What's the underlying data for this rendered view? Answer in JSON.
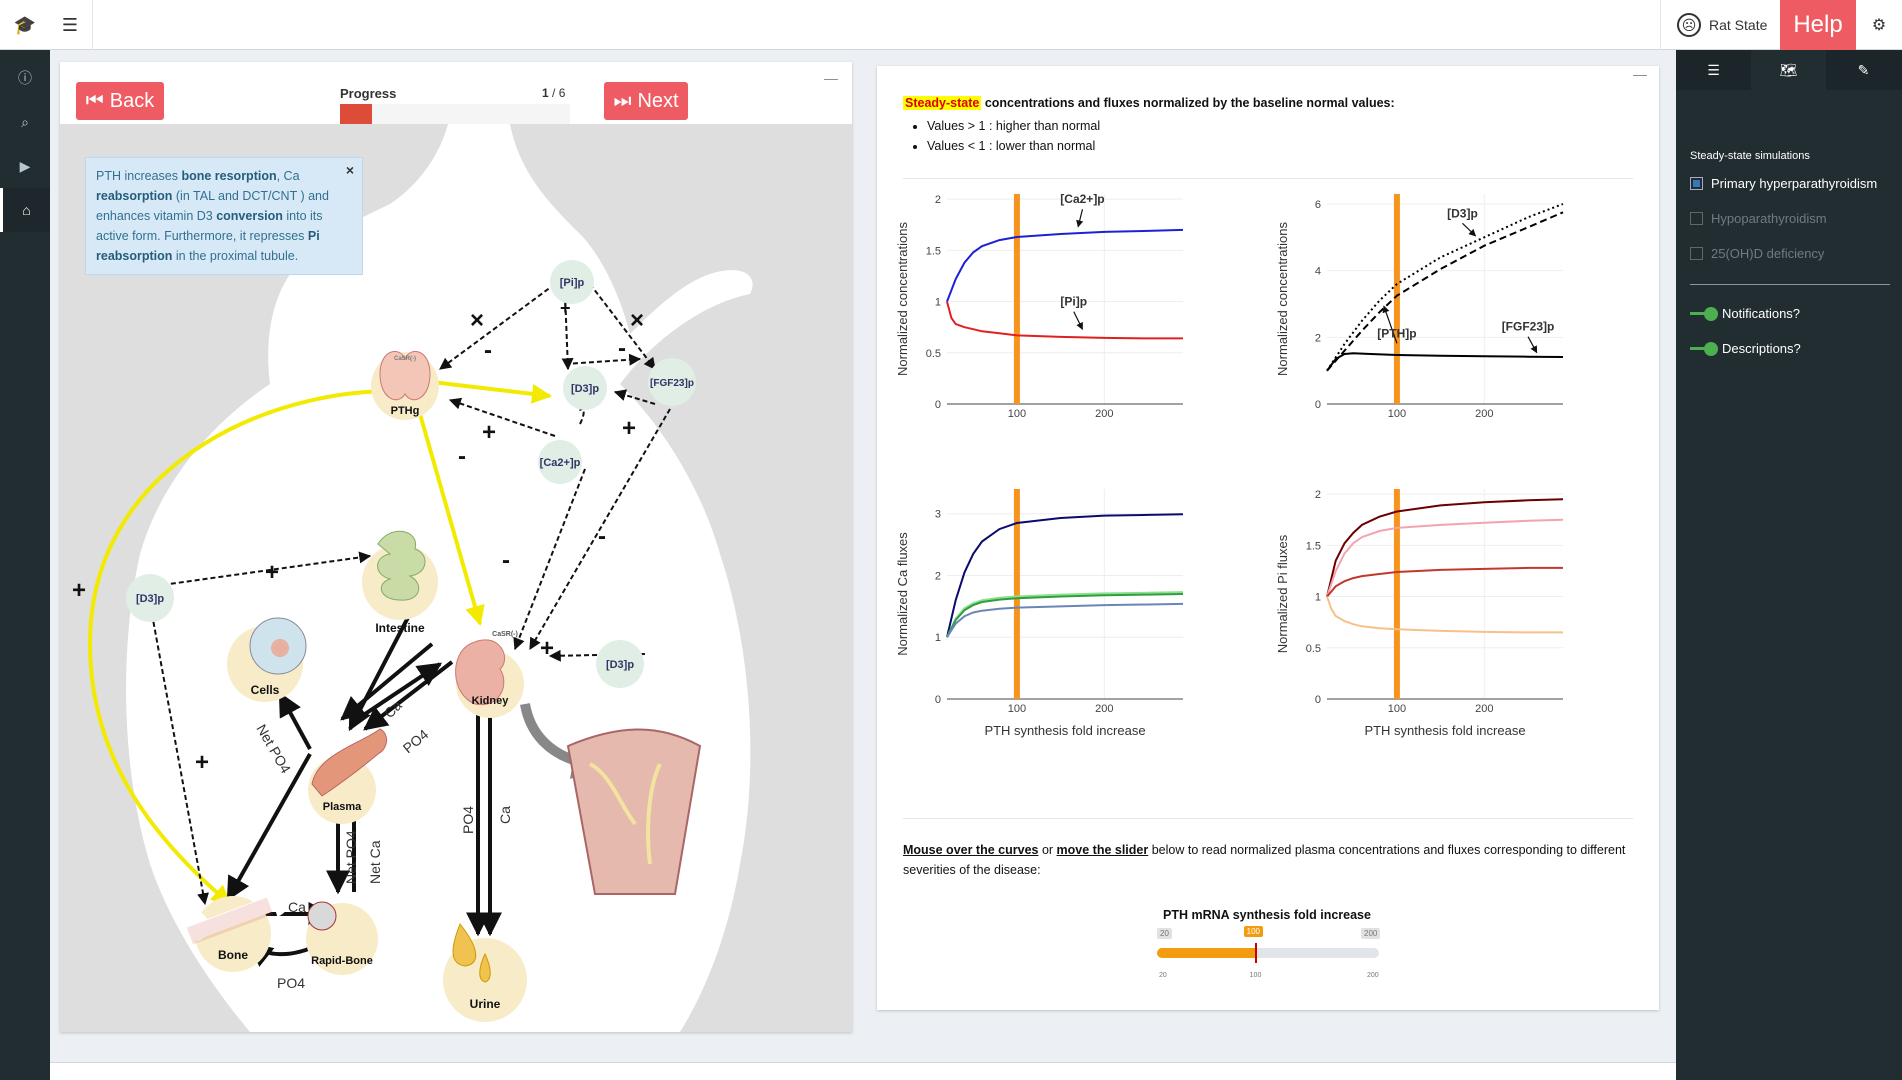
{
  "topbar": {
    "logo_icon": "graduation-cap-icon",
    "menu_icon": "hamburger-icon",
    "rat_state_label": "Rat State",
    "help_label": "Help",
    "settings_icon": "gears-icon"
  },
  "leftnav": {
    "items": [
      {
        "name": "info-icon",
        "glyph": "i"
      },
      {
        "name": "search-icon",
        "glyph": "⌕"
      },
      {
        "name": "video-icon",
        "glyph": "▶"
      },
      {
        "name": "home-icon",
        "glyph": "⌂"
      }
    ],
    "active_index": 3
  },
  "rightbar": {
    "tabs": [
      "sliders-icon",
      "map-icon",
      "paintbrush-icon"
    ],
    "active_tab": 1,
    "section_title": "Steady-state simulations",
    "options": [
      {
        "label": "Primary hyperparathyroidism",
        "checked": true,
        "enabled": true
      },
      {
        "label": "Hypoparathyroidism",
        "checked": false,
        "enabled": false
      },
      {
        "label": "25(OH)D deficiency",
        "checked": false,
        "enabled": false
      }
    ],
    "toggles": [
      {
        "label": "Notifications?",
        "on": true
      },
      {
        "label": "Descriptions?",
        "on": true
      }
    ]
  },
  "tutorial": {
    "back_label": "Back",
    "next_label": "Next",
    "progress_label": "Progress",
    "progress_current": "1",
    "progress_total": "6",
    "progress_fraction": 0.14,
    "tooltip_close": "×",
    "tooltip_parts": [
      {
        "t": "PTH increases ",
        "b": false
      },
      {
        "t": "bone resorption",
        "b": true
      },
      {
        "t": ", Ca ",
        "b": false
      },
      {
        "t": "reabsorption",
        "b": true
      },
      {
        "t": " (in TAL and DCT/CNT ) and enhances vitamin D3 ",
        "b": false
      },
      {
        "t": "conversion",
        "b": true
      },
      {
        "t": " into its active form. Furthermore, it represses ",
        "b": false
      },
      {
        "t": "Pi reabsorption",
        "b": true
      },
      {
        "t": " in the proximal tubule.",
        "b": false
      }
    ]
  },
  "diagram": {
    "nodes": {
      "pi_p": "[Pi]p",
      "d3_p_top": "[D3]p",
      "fgf23_p": "[FGF23]p",
      "ca2_p": "[Ca2+]p",
      "pthg": "PTHg",
      "casr_pthg": "CaSR(-)",
      "d3_p_left": "[D3]p",
      "intestine": "Intestine",
      "cells": "Cells",
      "kidney": "Kidney",
      "casr_kidney": "CaSR(-)",
      "d3_p_right": "[D3]p",
      "plasma": "Plasma",
      "bone": "Bone",
      "rapid_bone": "Rapid-Bone",
      "urine": "Urine"
    },
    "signs": [
      "+",
      "-",
      "+",
      "×",
      "×",
      "-",
      "-",
      "+",
      "+",
      "-",
      "-",
      "+",
      "+",
      "+"
    ],
    "flux_labels": {
      "net_po4_cells": "Net PO4",
      "ca_kidney": "Ca",
      "po4_kidney": "PO4",
      "net_po4_rapid": "Net PO4",
      "net_ca_rapid": "Net Ca",
      "po4_urine": "PO4",
      "ca_urine": "Ca",
      "ca_bone": "Ca",
      "po4_bone": "PO4"
    }
  },
  "results": {
    "heading_highlight": "Steady-state",
    "heading_rest": " concentrations and fluxes normalized by the baseline normal values:",
    "bullets": [
      "Values > 1 : higher than normal",
      "Values < 1 : lower than normal"
    ],
    "note_u1": "Mouse over the curves",
    "note_or": " or ",
    "note_u2": "move the slider",
    "note_rest": " below to read normalized plasma concentrations and fluxes corresponding to different severities of the disease:",
    "slider": {
      "title": "PTH mRNA synthesis fold increase",
      "min": 20,
      "max": 200,
      "value": 100,
      "min_label": "20",
      "max_label": "200",
      "value_label": "100",
      "ticks": [
        "20",
        "100",
        "200"
      ]
    }
  },
  "chart_data": [
    {
      "type": "line",
      "xlabel": "",
      "ylabel": "Normalized concentrations",
      "xlim": [
        20,
        290
      ],
      "ylim": [
        0,
        2.05
      ],
      "xticks": [
        100,
        200
      ],
      "yticks": [
        0,
        0.5,
        1,
        1.5,
        2
      ],
      "ytick_labels": [
        "0",
        "0.5",
        "1",
        "1.5",
        "2"
      ],
      "marker_x": 100,
      "series": [
        {
          "name": "[Ca2+]p",
          "color": "#1f1fd6",
          "dash": "solid",
          "x": [
            20,
            30,
            40,
            50,
            60,
            80,
            100,
            150,
            200,
            250,
            290
          ],
          "y": [
            1.0,
            1.22,
            1.38,
            1.48,
            1.54,
            1.6,
            1.63,
            1.66,
            1.68,
            1.69,
            1.7
          ]
        },
        {
          "name": "[Pi]p",
          "color": "#e02020",
          "dash": "solid",
          "x": [
            20,
            25,
            30,
            40,
            50,
            60,
            80,
            100,
            150,
            200,
            250,
            290
          ],
          "y": [
            1.0,
            0.84,
            0.78,
            0.75,
            0.73,
            0.71,
            0.69,
            0.67,
            0.655,
            0.645,
            0.64,
            0.64
          ]
        }
      ],
      "annotations": [
        {
          "text": "[Ca2+]p",
          "x": 175,
          "y": 1.96,
          "ax": 170,
          "ay": 1.7
        },
        {
          "text": "[Pi]p",
          "x": 165,
          "y": 0.96,
          "ax": 175,
          "ay": 0.7
        }
      ]
    },
    {
      "type": "line",
      "xlabel": "",
      "ylabel": "Normalized concentrations",
      "xlim": [
        20,
        290
      ],
      "ylim": [
        0,
        6.3
      ],
      "xticks": [
        100,
        200
      ],
      "yticks": [
        0,
        2,
        4,
        6
      ],
      "ytick_labels": [
        "0",
        "2",
        "4",
        "6"
      ],
      "marker_x": 100,
      "series": [
        {
          "name": "[D3]p",
          "color": "#000000",
          "dash": "dot",
          "x": [
            20,
            40,
            60,
            80,
            100,
            150,
            200,
            250,
            290
          ],
          "y": [
            1.0,
            1.8,
            2.5,
            3.1,
            3.6,
            4.4,
            5.0,
            5.6,
            6.0
          ]
        },
        {
          "name": "[PTH]p",
          "color": "#000000",
          "dash": "dash",
          "x": [
            20,
            40,
            60,
            80,
            100,
            150,
            200,
            250,
            290
          ],
          "y": [
            1.0,
            1.6,
            2.2,
            2.75,
            3.25,
            4.05,
            4.75,
            5.3,
            5.75
          ]
        },
        {
          "name": "[FGF23]p",
          "color": "#000000",
          "dash": "solid",
          "x": [
            20,
            30,
            40,
            50,
            70,
            100,
            150,
            200,
            250,
            290
          ],
          "y": [
            1.0,
            1.35,
            1.5,
            1.52,
            1.5,
            1.47,
            1.45,
            1.43,
            1.42,
            1.41
          ]
        }
      ],
      "annotations": [
        {
          "text": "[D3]p",
          "x": 175,
          "y": 5.6,
          "ax": 190,
          "ay": 4.95
        },
        {
          "text": "[PTH]p",
          "x": 100,
          "y": 2.0,
          "ax": 85,
          "ay": 2.85
        },
        {
          "text": "[FGF23]p",
          "x": 250,
          "y": 2.2,
          "ax": 260,
          "ay": 1.45
        }
      ]
    },
    {
      "type": "line",
      "xlabel": "PTH synthesis fold increase",
      "ylabel": "Normalized Ca fluxes",
      "xlim": [
        20,
        290
      ],
      "ylim": [
        0,
        3.4
      ],
      "xticks": [
        100,
        200
      ],
      "yticks": [
        0,
        1,
        2,
        3
      ],
      "ytick_labels": [
        "0",
        "1",
        "2",
        "3"
      ],
      "marker_x": 100,
      "series": [
        {
          "name": "",
          "color": "#0b0b6e",
          "dash": "solid",
          "x": [
            20,
            30,
            40,
            50,
            60,
            80,
            100,
            150,
            200,
            250,
            290
          ],
          "y": [
            1.0,
            1.6,
            2.05,
            2.35,
            2.55,
            2.75,
            2.85,
            2.93,
            2.97,
            2.98,
            2.99
          ]
        },
        {
          "name": "",
          "color": "#8ee08e",
          "dash": "solid",
          "x": [
            20,
            30,
            40,
            50,
            60,
            80,
            100,
            150,
            200,
            250,
            290
          ],
          "y": [
            1.0,
            1.3,
            1.47,
            1.55,
            1.6,
            1.64,
            1.66,
            1.69,
            1.71,
            1.72,
            1.73
          ]
        },
        {
          "name": "",
          "color": "#2e9e3e",
          "dash": "solid",
          "x": [
            20,
            30,
            40,
            50,
            60,
            80,
            100,
            150,
            200,
            250,
            290
          ],
          "y": [
            1.0,
            1.28,
            1.44,
            1.52,
            1.57,
            1.61,
            1.63,
            1.66,
            1.68,
            1.69,
            1.7
          ]
        },
        {
          "name": "",
          "color": "#6a86b8",
          "dash": "solid",
          "x": [
            20,
            30,
            40,
            50,
            60,
            80,
            100,
            150,
            200,
            250,
            290
          ],
          "y": [
            1.0,
            1.22,
            1.34,
            1.4,
            1.43,
            1.46,
            1.48,
            1.5,
            1.52,
            1.53,
            1.54
          ]
        }
      ],
      "annotations": []
    },
    {
      "type": "line",
      "xlabel": "PTH synthesis fold increase",
      "ylabel": "Normalized Pi fluxes",
      "xlim": [
        20,
        290
      ],
      "ylim": [
        0,
        2.05
      ],
      "xticks": [
        100,
        200
      ],
      "yticks": [
        0,
        0.5,
        1,
        1.5,
        2
      ],
      "ytick_labels": [
        "0",
        "0.5",
        "1",
        "1.5",
        "2"
      ],
      "marker_x": 100,
      "series": [
        {
          "name": "",
          "color": "#6b0000",
          "dash": "solid",
          "x": [
            20,
            30,
            40,
            50,
            60,
            80,
            100,
            150,
            200,
            250,
            290
          ],
          "y": [
            1.0,
            1.35,
            1.52,
            1.62,
            1.7,
            1.78,
            1.83,
            1.89,
            1.92,
            1.94,
            1.95
          ]
        },
        {
          "name": "",
          "color": "#f4a3b0",
          "dash": "solid",
          "x": [
            20,
            30,
            40,
            50,
            60,
            80,
            100,
            150,
            200,
            250,
            290
          ],
          "y": [
            1.0,
            1.25,
            1.42,
            1.52,
            1.58,
            1.64,
            1.67,
            1.7,
            1.72,
            1.74,
            1.75
          ]
        },
        {
          "name": "",
          "color": "#c0392b",
          "dash": "solid",
          "x": [
            20,
            30,
            40,
            50,
            60,
            80,
            100,
            150,
            200,
            250,
            290
          ],
          "y": [
            1.0,
            1.1,
            1.15,
            1.18,
            1.2,
            1.22,
            1.24,
            1.26,
            1.27,
            1.28,
            1.28
          ]
        },
        {
          "name": "",
          "color": "#f7c08a",
          "dash": "solid",
          "x": [
            20,
            25,
            30,
            40,
            50,
            60,
            80,
            100,
            150,
            200,
            250,
            290
          ],
          "y": [
            1.0,
            0.88,
            0.81,
            0.76,
            0.73,
            0.71,
            0.69,
            0.68,
            0.665,
            0.655,
            0.65,
            0.65
          ]
        }
      ],
      "annotations": []
    }
  ]
}
